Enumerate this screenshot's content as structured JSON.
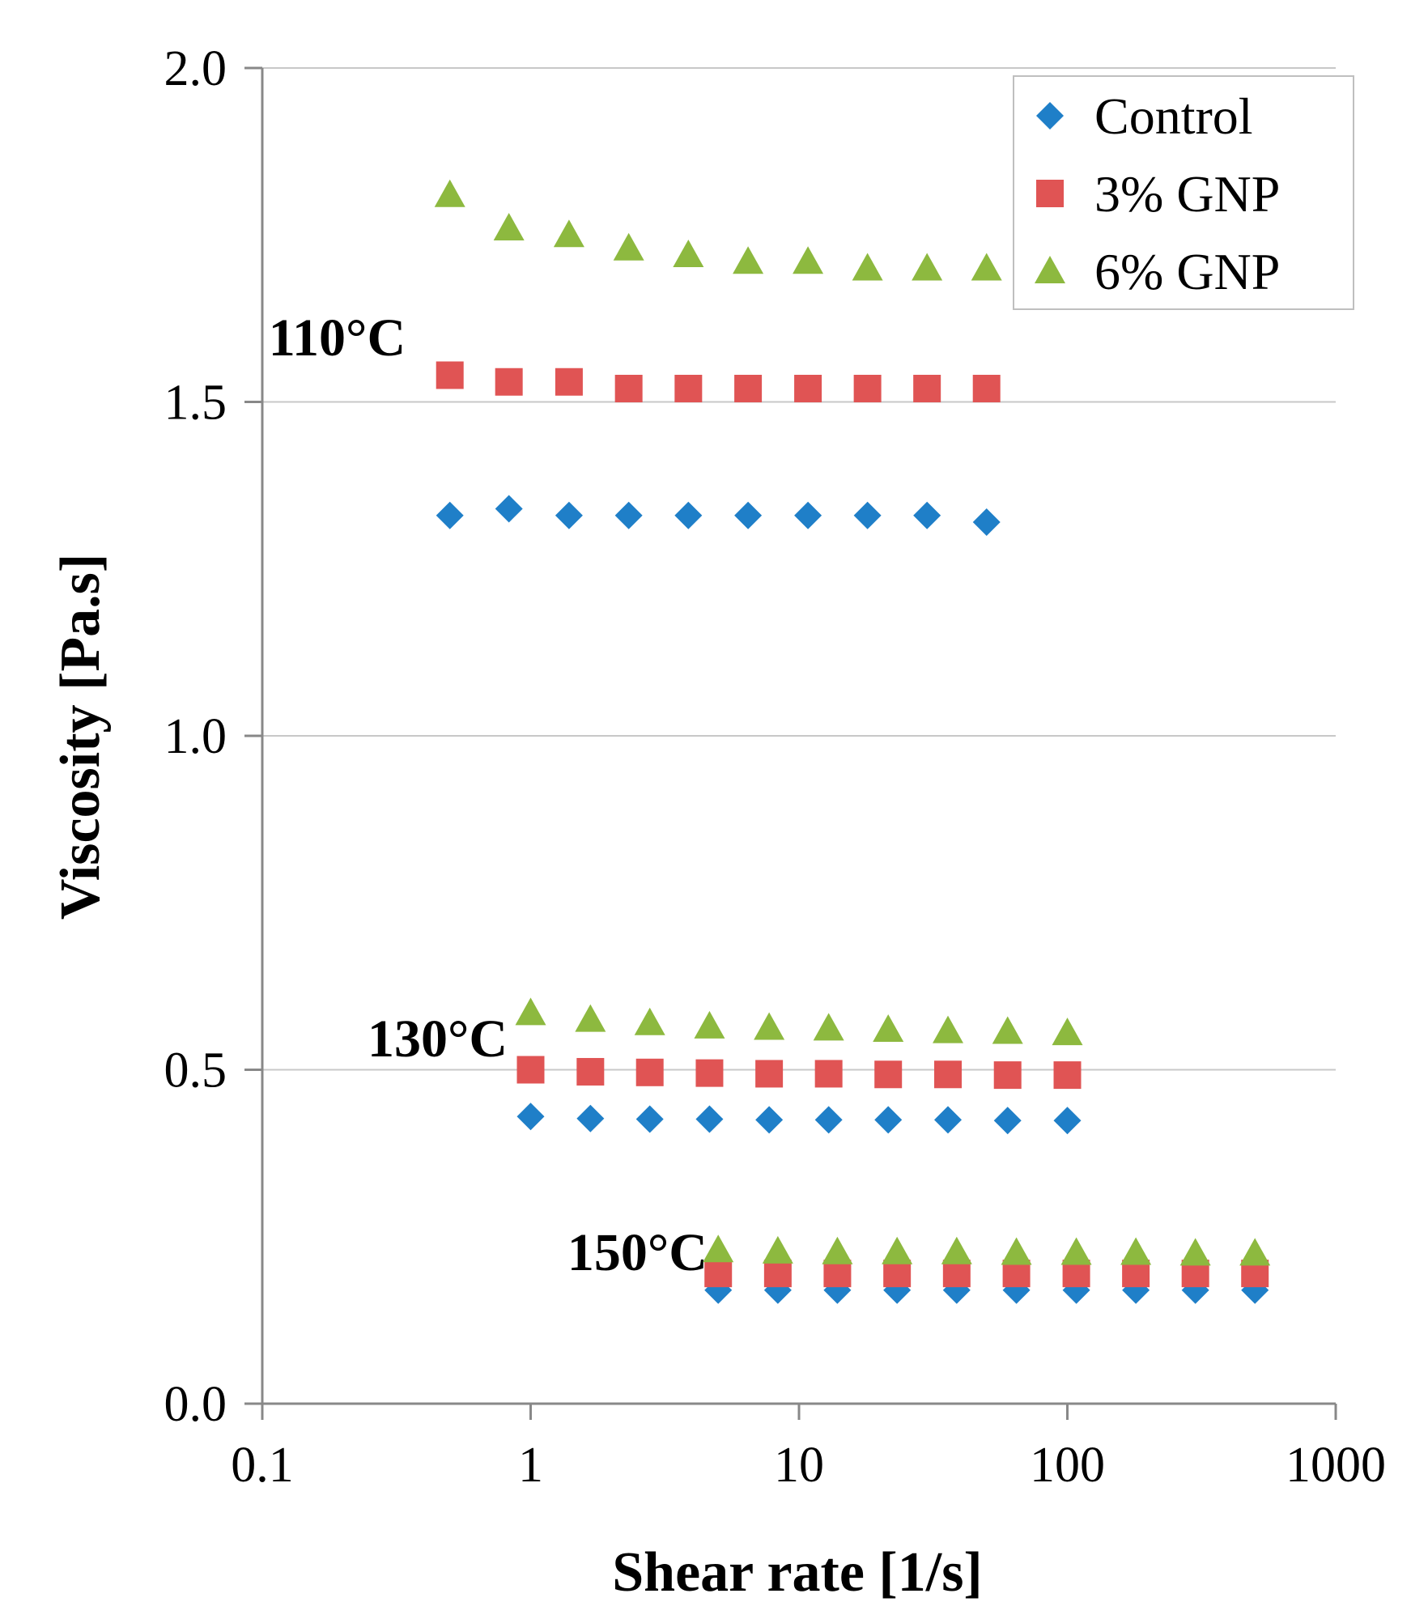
{
  "chart_data": {
    "type": "scatter",
    "title": "",
    "xlabel": "Shear rate [1/s]",
    "ylabel": "Viscosity [Pa.s]",
    "xscale": "log",
    "xlim": [
      0.1,
      1000
    ],
    "ylim": [
      0.0,
      2.0
    ],
    "x_tick_labels": [
      "0.1",
      "1",
      "10",
      "100",
      "1000"
    ],
    "y_tick_labels": [
      "0.0",
      "0.5",
      "1.0",
      "1.5",
      "2.0"
    ],
    "grid": "horizontal",
    "legend_position": "top-right",
    "colors": {
      "Control": "#1f7fc8",
      "3% GNP": "#e05454",
      "6% GNP": "#8db93f"
    },
    "annotations": [
      {
        "text": "110°C",
        "x": 0.19,
        "y": 1.57
      },
      {
        "text": "130°C",
        "x": 0.45,
        "y": 0.52
      },
      {
        "text": "150°C",
        "x": 2.5,
        "y": 0.2
      }
    ],
    "series": [
      {
        "name": "Control",
        "marker": "diamond",
        "groups": [
          {
            "temperature": "110°C",
            "x": [
              0.5,
              0.83,
              1.39,
              2.32,
              3.87,
              6.46,
              10.8,
              18,
              30,
              50
            ],
            "y": [
              1.33,
              1.34,
              1.33,
              1.33,
              1.33,
              1.33,
              1.33,
              1.33,
              1.33,
              1.32
            ]
          },
          {
            "temperature": "130°C",
            "x": [
              1,
              1.67,
              2.78,
              4.64,
              7.74,
              12.9,
              21.5,
              35.9,
              59.9,
              100
            ],
            "y": [
              0.43,
              0.427,
              0.426,
              0.426,
              0.425,
              0.425,
              0.425,
              0.425,
              0.424,
              0.424
            ]
          },
          {
            "temperature": "150°C",
            "x": [
              5,
              8.34,
              13.9,
              23.2,
              38.7,
              64.6,
              108,
              180,
              300,
              500
            ],
            "y": [
              0.17,
              0.17,
              0.17,
              0.17,
              0.17,
              0.17,
              0.17,
              0.17,
              0.17,
              0.17
            ]
          }
        ]
      },
      {
        "name": "3% GNP",
        "marker": "square",
        "groups": [
          {
            "temperature": "110°C",
            "x": [
              0.5,
              0.83,
              1.39,
              2.32,
              3.87,
              6.46,
              10.8,
              18,
              30,
              50
            ],
            "y": [
              1.54,
              1.53,
              1.53,
              1.52,
              1.52,
              1.52,
              1.52,
              1.52,
              1.52,
              1.52
            ]
          },
          {
            "temperature": "130°C",
            "x": [
              1,
              1.67,
              2.78,
              4.64,
              7.74,
              12.9,
              21.5,
              35.9,
              59.9,
              100
            ],
            "y": [
              0.5,
              0.497,
              0.496,
              0.495,
              0.494,
              0.494,
              0.493,
              0.493,
              0.492,
              0.492
            ]
          },
          {
            "temperature": "150°C",
            "x": [
              5,
              8.34,
              13.9,
              23.2,
              38.7,
              64.6,
              108,
              180,
              300,
              500
            ],
            "y": [
              0.195,
              0.195,
              0.195,
              0.195,
              0.195,
              0.195,
              0.195,
              0.195,
              0.195,
              0.195
            ]
          }
        ]
      },
      {
        "name": "6% GNP",
        "marker": "triangle",
        "groups": [
          {
            "temperature": "110°C",
            "x": [
              0.5,
              0.83,
              1.39,
              2.32,
              3.87,
              6.46,
              10.8,
              18,
              30,
              50
            ],
            "y": [
              1.81,
              1.76,
              1.75,
              1.73,
              1.72,
              1.71,
              1.71,
              1.7,
              1.7,
              1.7
            ]
          },
          {
            "temperature": "130°C",
            "x": [
              1,
              1.67,
              2.78,
              4.64,
              7.74,
              12.9,
              21.5,
              35.9,
              59.9,
              100
            ],
            "y": [
              0.585,
              0.575,
              0.57,
              0.565,
              0.563,
              0.562,
              0.56,
              0.558,
              0.557,
              0.555
            ]
          },
          {
            "temperature": "150°C",
            "x": [
              5,
              8.34,
              13.9,
              23.2,
              38.7,
              64.6,
              108,
              180,
              300,
              500
            ],
            "y": [
              0.23,
              0.228,
              0.227,
              0.227,
              0.227,
              0.226,
              0.226,
              0.226,
              0.225,
              0.225
            ]
          }
        ]
      }
    ]
  }
}
